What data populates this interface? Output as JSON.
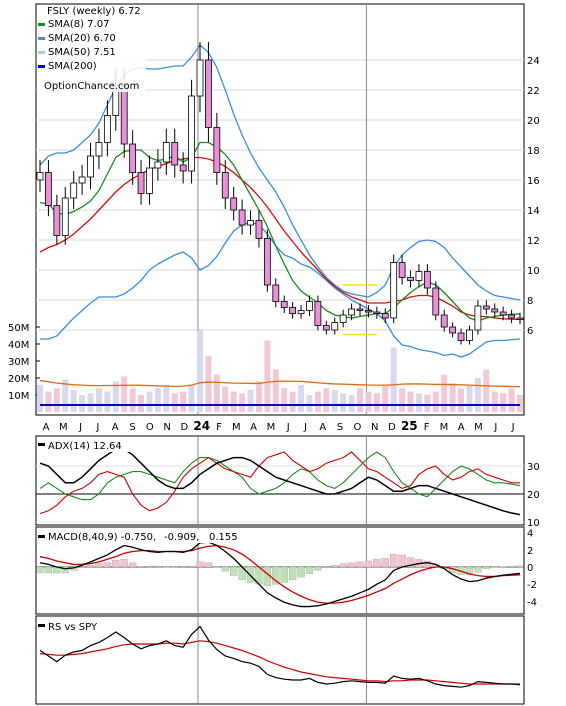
{
  "chart_data": [
    {
      "type": "candlestick",
      "title": "FSLY (weekly) 6.72",
      "legend": [
        {
          "label": "SMA(8) 7.07",
          "color": "#1a8a1a"
        },
        {
          "label": "SMA(20) 6.70",
          "color": "#3a8fd8"
        },
        {
          "label": "SMA(50) 7.51",
          "color": "#9fd0ea"
        },
        {
          "label": "SMA(200)",
          "color": "#0000cc"
        }
      ],
      "watermark": "OptionChance.com",
      "x_labels": [
        "A",
        "M",
        "J",
        "J",
        "A",
        "S",
        "O",
        "N",
        "D",
        "24",
        "F",
        "M",
        "A",
        "M",
        "J",
        "J",
        "A",
        "S",
        "O",
        "N",
        "D",
        "25",
        "F",
        "M",
        "A",
        "M",
        "J",
        "J"
      ],
      "y_ticks": [
        6,
        8,
        10,
        12,
        14,
        16,
        18,
        20,
        22,
        24
      ],
      "ylim": [
        3.5,
        26
      ],
      "close": [
        16.5,
        14.3,
        12.3,
        14.8,
        15.8,
        16.2,
        17.6,
        18.5,
        20.3,
        22.3,
        18.4,
        16.5,
        15.1,
        16.8,
        17.2,
        18.5,
        17.0,
        16.6,
        21.6,
        24.0,
        19.5,
        16.5,
        14.8,
        14.0,
        13.0,
        13.3,
        12.1,
        9.0,
        7.9,
        7.5,
        7.1,
        7.3,
        7.9,
        6.3,
        6.0,
        6.5,
        7.0,
        7.4,
        7.3,
        7.2,
        7.1,
        6.8,
        10.5,
        9.5,
        9.3,
        9.9,
        8.8,
        7.0,
        6.2,
        5.8,
        5.3,
        6.0,
        7.6,
        7.4,
        7.2,
        7.0,
        6.8,
        6.72
      ],
      "sma8": [
        14.5,
        14.4,
        13.8,
        13.7,
        13.9,
        14.2,
        14.6,
        15.3,
        16.4,
        17.5,
        17.9,
        18.0,
        18.0,
        17.5,
        17.3,
        17.4,
        17.6,
        17.2,
        17.5,
        18.5,
        18.5,
        18.2,
        17.7,
        17.0,
        16.0,
        15.0,
        14.0,
        12.9,
        11.6,
        10.4,
        9.3,
        8.6,
        8.2,
        7.8,
        7.3,
        7.0,
        6.9,
        6.8,
        6.9,
        7.0,
        7.1,
        7.1,
        7.5,
        8.0,
        8.5,
        8.9,
        9.2,
        9.0,
        8.5,
        7.9,
        7.3,
        6.8,
        6.6,
        6.8,
        6.9,
        7.0,
        7.05,
        7.07
      ],
      "sma20": [
        11.2,
        11.5,
        11.7,
        12.0,
        12.4,
        12.9,
        13.4,
        14.0,
        14.6,
        15.2,
        15.7,
        16.1,
        16.4,
        16.7,
        16.9,
        17.1,
        17.3,
        17.4,
        17.5,
        17.5,
        17.4,
        17.2,
        16.9,
        16.5,
        16.0,
        15.5,
        14.9,
        14.2,
        13.4,
        12.6,
        11.9,
        11.2,
        10.6,
        10.0,
        9.4,
        8.9,
        8.5,
        8.2,
        8.0,
        7.8,
        7.8,
        7.8,
        7.9,
        8.0,
        8.2,
        8.3,
        8.3,
        8.2,
        7.9,
        7.6,
        7.2,
        7.0,
        6.9,
        6.9,
        6.8,
        6.75,
        6.72,
        6.7
      ],
      "upper_band": [
        17.0,
        17.6,
        17.8,
        17.8,
        18.0,
        18.5,
        19.0,
        19.8,
        21.0,
        22.2,
        23.0,
        23.4,
        23.5,
        23.4,
        23.4,
        23.5,
        23.6,
        23.6,
        24.2,
        25.0,
        24.5,
        23.5,
        22.0,
        20.4,
        19.0,
        17.8,
        16.8,
        16.0,
        15.2,
        14.2,
        13.0,
        12.0,
        11.0,
        10.2,
        9.5,
        9.0,
        8.6,
        8.4,
        8.3,
        8.2,
        8.5,
        9.0,
        10.2,
        11.0,
        11.5,
        11.9,
        12.0,
        11.9,
        11.5,
        10.8,
        10.2,
        9.6,
        9.0,
        8.6,
        8.3,
        8.2,
        8.1,
        8.0
      ],
      "lower_band": [
        5.4,
        5.4,
        5.6,
        6.2,
        6.8,
        7.3,
        7.8,
        8.2,
        8.2,
        8.2,
        8.4,
        8.8,
        9.3,
        10.0,
        10.4,
        10.7,
        11.0,
        11.2,
        10.8,
        10.0,
        10.3,
        10.9,
        11.8,
        12.6,
        13.0,
        13.2,
        13.0,
        12.4,
        11.6,
        11.0,
        10.8,
        10.4,
        10.2,
        9.8,
        9.3,
        8.8,
        8.4,
        8.0,
        7.7,
        7.4,
        7.1,
        6.6,
        5.6,
        5.0,
        4.9,
        4.7,
        4.6,
        4.5,
        4.3,
        4.4,
        4.2,
        4.4,
        4.8,
        5.2,
        5.3,
        5.3,
        5.35,
        5.4
      ],
      "volume_axis": {
        "ticks": [
          "50M",
          "40M",
          "30M",
          "20M",
          "10M"
        ],
        "values": [
          50,
          40,
          30,
          20,
          10
        ],
        "ylim": [
          0,
          55
        ]
      },
      "volume": [
        16,
        12,
        14,
        19,
        13,
        10,
        11,
        14,
        12,
        18,
        21,
        14,
        10,
        12,
        14,
        16,
        11,
        12,
        16,
        48,
        33,
        22,
        15,
        12,
        11,
        13,
        18,
        42,
        25,
        14,
        12,
        16,
        10,
        12,
        14,
        13,
        11,
        10,
        14,
        12,
        11,
        16,
        38,
        14,
        12,
        11,
        10,
        12,
        22,
        17,
        14,
        16,
        20,
        25,
        12,
        11,
        14,
        10
      ],
      "volume_sma": [
        18.5,
        17.8,
        17.0,
        16.5,
        16.0,
        15.8,
        15.5,
        15.5,
        15.6,
        15.6,
        15.7,
        15.8,
        15.7,
        15.6,
        15.4,
        15.2,
        15.0,
        15.2,
        15.8,
        17.2,
        17.6,
        17.5,
        17.2,
        17.0,
        16.9,
        16.8,
        16.8,
        17.5,
        18.0,
        18.2,
        18.1,
        18.0,
        17.6,
        17.2,
        16.8,
        16.5,
        16.4,
        16.2,
        16.0,
        15.9,
        15.8,
        15.8,
        16.0,
        16.4,
        16.5,
        16.5,
        16.4,
        16.2,
        16.2,
        16.1,
        16.0,
        15.8,
        15.6,
        15.4,
        15.2,
        15.1,
        15.0,
        14.9
      ]
    },
    {
      "type": "line",
      "title": "ADX(14) 12.64",
      "y_ticks": [
        10,
        20,
        30
      ],
      "ylim": [
        8,
        38
      ],
      "reference_line": 20,
      "series": [
        {
          "role": "adx",
          "color": "#000000",
          "values": [
            31,
            30,
            27,
            24,
            24,
            26,
            29,
            32,
            34,
            36,
            36,
            34,
            31,
            28,
            25,
            23,
            22,
            22,
            24,
            27,
            29,
            31,
            32,
            33,
            33,
            32,
            30,
            28,
            26,
            25,
            24,
            23,
            22,
            21,
            20,
            20,
            21,
            22,
            24,
            26,
            25,
            23,
            21,
            21,
            22,
            23,
            23,
            22,
            21,
            20,
            19,
            18,
            17,
            16,
            15,
            14,
            13.2,
            12.64
          ]
        },
        {
          "role": "plus_di",
          "color": "#cc0000",
          "values": [
            13,
            14,
            16,
            19,
            21,
            22,
            24,
            27,
            28,
            27,
            26,
            20,
            16,
            14,
            15,
            17,
            21,
            26,
            29,
            31,
            33,
            31,
            29,
            28,
            27,
            26,
            30,
            33,
            34,
            35,
            32,
            30,
            28,
            29,
            31,
            32,
            33,
            35,
            32,
            29,
            28,
            26,
            24,
            22,
            23,
            27,
            29,
            30,
            27,
            25,
            26,
            28,
            29,
            27,
            26,
            25,
            24,
            24
          ]
        },
        {
          "role": "minus_di",
          "color": "#1a8a1a",
          "values": [
            22,
            24,
            22,
            20,
            19,
            18,
            18,
            20,
            24,
            26,
            27,
            28,
            28,
            27,
            26,
            25,
            24,
            28,
            31,
            33,
            33,
            32,
            30,
            28,
            26,
            22,
            20,
            21,
            22,
            24,
            27,
            29,
            28,
            25,
            23,
            22,
            24,
            27,
            30,
            33,
            35,
            33,
            28,
            24,
            22,
            20,
            19,
            22,
            25,
            28,
            30,
            29,
            27,
            25,
            24,
            24,
            23.5,
            23
          ]
        }
      ]
    },
    {
      "type": "line",
      "title": "MACD(8,40,9) -0.750,",
      "values_shown": [
        {
          "text": "-0.909,",
          "color": "#cc0000"
        },
        {
          "text": "0.155",
          "color": "#1f6fbf"
        }
      ],
      "y_ticks": [
        4,
        2,
        0,
        -2,
        -4
      ],
      "ylim": [
        -5.4,
        4.8
      ],
      "series": [
        {
          "role": "macd",
          "color": "#000000",
          "values": [
            0.5,
            0.3,
            0.0,
            -0.2,
            -0.1,
            0.2,
            0.6,
            1.0,
            1.4,
            2.0,
            2.5,
            2.3,
            2.0,
            1.8,
            1.7,
            1.8,
            1.8,
            1.7,
            2.0,
            2.8,
            2.9,
            2.5,
            1.8,
            1.0,
            0.0,
            -1.0,
            -2.0,
            -3.0,
            -3.6,
            -4.1,
            -4.4,
            -4.6,
            -4.6,
            -4.5,
            -4.3,
            -4.0,
            -3.7,
            -3.4,
            -3.0,
            -2.6,
            -2.0,
            -1.5,
            -0.4,
            0.0,
            0.2,
            0.4,
            0.5,
            0.3,
            -0.2,
            -0.9,
            -1.4,
            -1.7,
            -1.6,
            -1.3,
            -1.1,
            -0.95,
            -0.85,
            -0.75
          ]
        },
        {
          "role": "signal",
          "color": "#cc0000",
          "values": [
            1.2,
            1.0,
            0.7,
            0.5,
            0.3,
            0.3,
            0.4,
            0.6,
            0.9,
            1.2,
            1.6,
            1.8,
            1.9,
            1.9,
            1.8,
            1.8,
            1.8,
            1.8,
            1.9,
            2.2,
            2.4,
            2.5,
            2.3,
            2.0,
            1.5,
            0.8,
            0.0,
            -0.8,
            -1.6,
            -2.3,
            -2.9,
            -3.4,
            -3.8,
            -4.1,
            -4.2,
            -4.2,
            -4.1,
            -3.9,
            -3.6,
            -3.3,
            -2.9,
            -2.5,
            -1.9,
            -1.4,
            -0.9,
            -0.5,
            -0.2,
            0.0,
            0.0,
            -0.2,
            -0.5,
            -0.8,
            -1.0,
            -1.1,
            -1.1,
            -1.0,
            -0.95,
            -0.909
          ]
        },
        {
          "role": "histogram",
          "values": [
            -0.7,
            -0.7,
            -0.7,
            -0.7,
            -0.4,
            -0.1,
            0.2,
            0.4,
            0.5,
            0.8,
            0.9,
            0.5,
            0.1,
            -0.1,
            -0.1,
            0.0,
            0.0,
            -0.1,
            0.1,
            0.6,
            0.5,
            0.0,
            -0.5,
            -1.0,
            -1.5,
            -1.8,
            -2.0,
            -2.2,
            -2.0,
            -1.8,
            -1.5,
            -1.2,
            -0.8,
            -0.4,
            -0.1,
            0.2,
            0.4,
            0.5,
            0.6,
            0.7,
            0.9,
            1.0,
            1.5,
            1.4,
            1.1,
            0.9,
            0.7,
            0.3,
            -0.2,
            -0.7,
            -0.9,
            -0.9,
            -0.6,
            -0.2,
            0.0,
            0.05,
            0.1,
            0.155
          ]
        }
      ]
    },
    {
      "type": "line",
      "title": "RS vs SPY",
      "series": [
        {
          "role": "rs",
          "color": "#000000",
          "values": [
            0.62,
            0.55,
            0.48,
            0.56,
            0.6,
            0.62,
            0.68,
            0.72,
            0.78,
            0.85,
            0.78,
            0.7,
            0.64,
            0.68,
            0.7,
            0.74,
            0.68,
            0.66,
            0.82,
            0.92,
            0.75,
            0.63,
            0.55,
            0.52,
            0.48,
            0.46,
            0.42,
            0.32,
            0.28,
            0.26,
            0.25,
            0.25,
            0.27,
            0.22,
            0.2,
            0.21,
            0.23,
            0.24,
            0.23,
            0.22,
            0.22,
            0.21,
            0.3,
            0.27,
            0.26,
            0.27,
            0.24,
            0.2,
            0.18,
            0.17,
            0.16,
            0.18,
            0.23,
            0.22,
            0.21,
            0.2,
            0.2,
            0.19
          ]
        },
        {
          "role": "rs_sma",
          "color": "#cc0000",
          "values": [
            0.58,
            0.57,
            0.56,
            0.56,
            0.57,
            0.58,
            0.6,
            0.62,
            0.64,
            0.67,
            0.69,
            0.7,
            0.7,
            0.7,
            0.7,
            0.71,
            0.71,
            0.7,
            0.72,
            0.74,
            0.73,
            0.71,
            0.68,
            0.65,
            0.62,
            0.58,
            0.54,
            0.49,
            0.45,
            0.41,
            0.38,
            0.35,
            0.33,
            0.31,
            0.29,
            0.28,
            0.27,
            0.26,
            0.25,
            0.24,
            0.24,
            0.23,
            0.24,
            0.24,
            0.25,
            0.25,
            0.25,
            0.24,
            0.23,
            0.22,
            0.21,
            0.2,
            0.2,
            0.2,
            0.2,
            0.2,
            0.2,
            0.2
          ]
        }
      ]
    }
  ]
}
